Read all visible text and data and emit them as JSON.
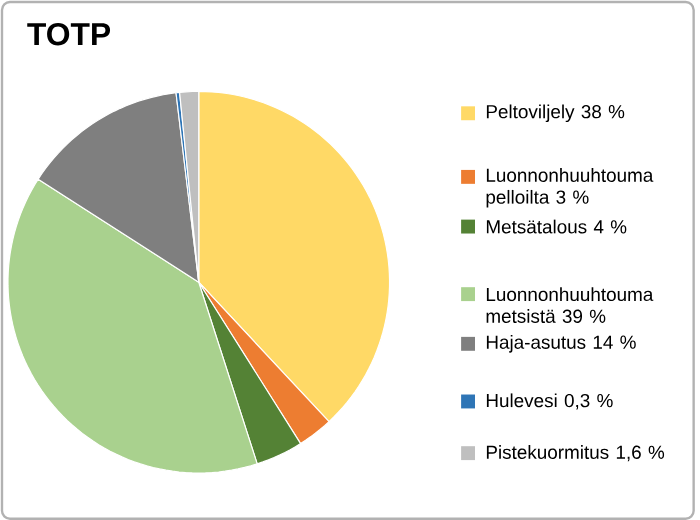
{
  "chart_data": {
    "type": "pie",
    "title": "TOTP",
    "categories": [
      "Peltoviljely 38 %",
      "Luonnonhuuhtouma pelloilta 3 %",
      "Metsätalous 4 %",
      "Luonnonhuuhtouma metsistä 39 %",
      "Haja-asutus 14 %",
      "Hulevesi 0,3 %",
      "Pistekuormitus 1,6 %"
    ],
    "values": [
      38,
      3,
      4,
      39,
      14,
      0.3,
      1.6
    ],
    "colors": [
      "#ffd966",
      "#ed7d31",
      "#548235",
      "#a9d18e",
      "#7f7f7f",
      "#2e75b6",
      "#bfbfbf"
    ],
    "legend": "right"
  }
}
